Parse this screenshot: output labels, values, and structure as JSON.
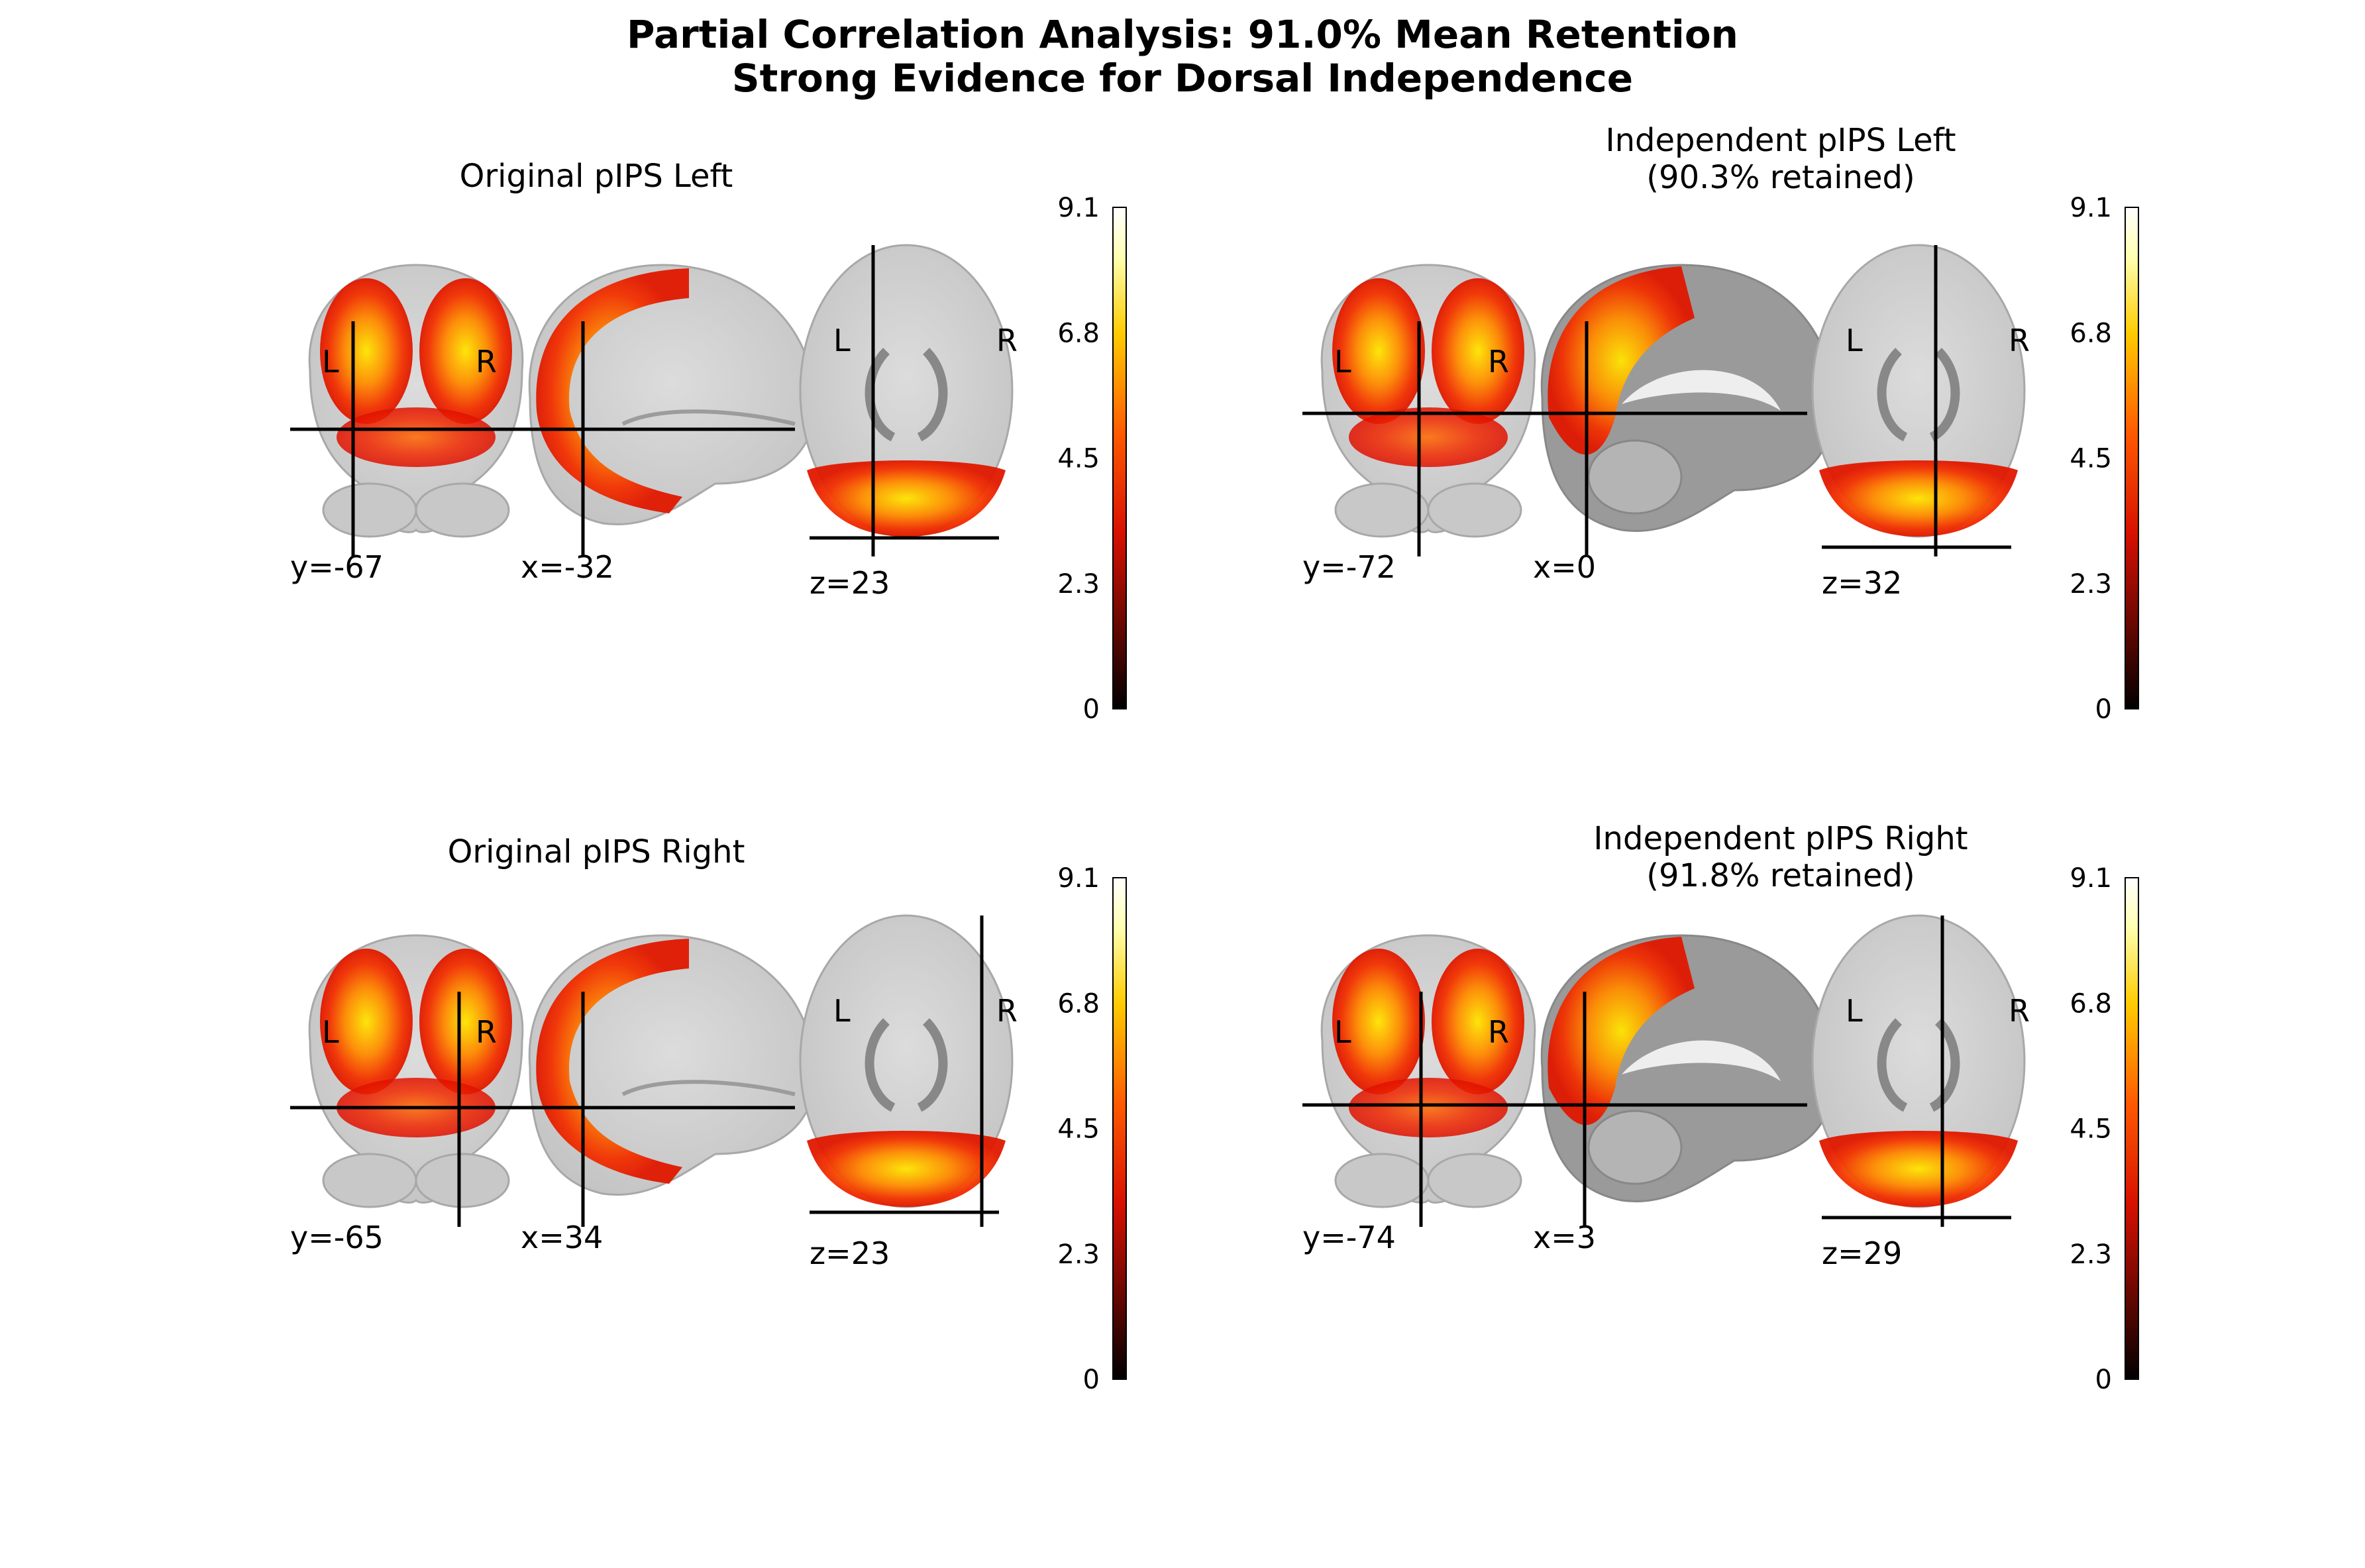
{
  "figure": {
    "title_line1": "Partial Correlation Analysis: 91.0% Mean Retention",
    "title_line2": "Strong Evidence for Dorsal Independence"
  },
  "colormap": {
    "name": "hot",
    "stops": [
      "#000000",
      "#e01000",
      "#ff6a00",
      "#ffd000",
      "#ffffd8",
      "#ffffff"
    ]
  },
  "colorbar": {
    "min": 0,
    "max": 9.1,
    "ticks": [
      "9.1",
      "6.8",
      "4.5",
      "2.3",
      "0"
    ]
  },
  "panels": [
    {
      "id": "orig-left",
      "title_lines": [
        "Original pIPS Left"
      ],
      "orientation_left": "L",
      "orientation_right": "R",
      "coronal_label": "y=-67",
      "sagittal_label": "x=-32",
      "axial_label": "z=23",
      "sagittal_type": "lateral"
    },
    {
      "id": "indep-left",
      "title_lines": [
        "Independent pIPS Left",
        "(90.3% retained)"
      ],
      "orientation_left": "L",
      "orientation_right": "R",
      "coronal_label": "y=-72",
      "sagittal_label": "x=0",
      "axial_label": "z=32",
      "sagittal_type": "midline"
    },
    {
      "id": "orig-right",
      "title_lines": [
        "Original pIPS Right"
      ],
      "orientation_left": "L",
      "orientation_right": "R",
      "coronal_label": "y=-65",
      "sagittal_label": "x=34",
      "axial_label": "z=23",
      "sagittal_type": "lateral"
    },
    {
      "id": "indep-right",
      "title_lines": [
        "Independent pIPS Right",
        "(91.8% retained)"
      ],
      "orientation_left": "L",
      "orientation_right": "R",
      "coronal_label": "y=-74",
      "sagittal_label": "x=3",
      "axial_label": "z=29",
      "sagittal_type": "midline"
    }
  ]
}
